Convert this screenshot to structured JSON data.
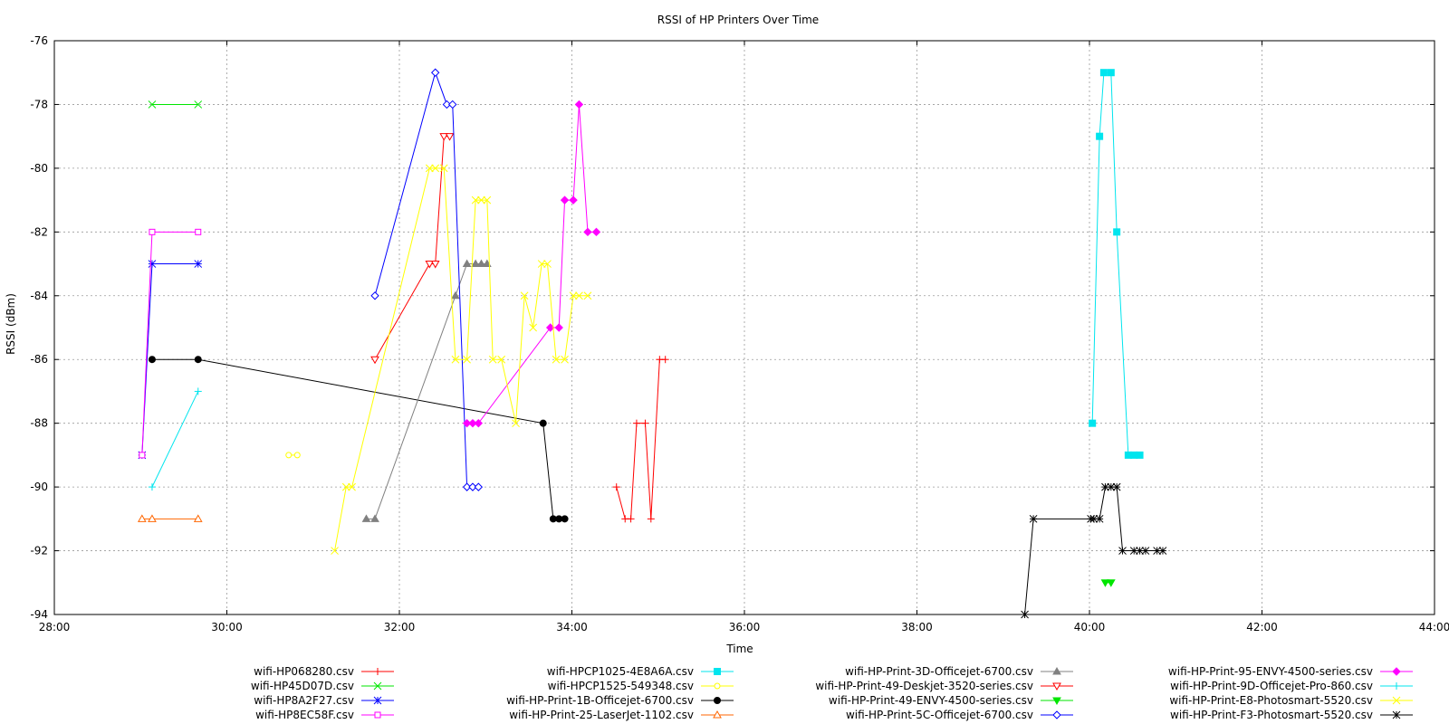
{
  "chart_data": {
    "type": "line",
    "title": "RSSI of HP Printers Over Time",
    "xlabel": "Time",
    "ylabel": "RSSI (dBm)",
    "xlim": [
      "28:00",
      "44:00"
    ],
    "ylim": [
      -94,
      -76
    ],
    "x_ticks": [
      "28:00",
      "30:00",
      "32:00",
      "34:00",
      "36:00",
      "38:00",
      "40:00",
      "42:00",
      "44:00"
    ],
    "y_ticks": [
      -76,
      -78,
      -80,
      -82,
      -84,
      -86,
      -88,
      -90,
      -92,
      -94
    ],
    "grid": true,
    "legend_position": "bottom",
    "series": [
      {
        "name": "wifi-HP068280.csv",
        "color": "#ff0000",
        "marker": "plus",
        "points": [
          [
            "34:31",
            -90
          ],
          [
            "34:37",
            -91
          ],
          [
            "34:41",
            -91
          ],
          [
            "34:45",
            -88
          ],
          [
            "34:51",
            -88
          ],
          [
            "34:55",
            -91
          ],
          [
            "35:01",
            -86
          ],
          [
            "35:05",
            -86
          ]
        ]
      },
      {
        "name": "wifi-HP45D07D.csv",
        "color": "#00e600",
        "marker": "cross",
        "points": [
          [
            "29:08",
            -78
          ],
          [
            "29:40",
            -78
          ]
        ]
      },
      {
        "name": "wifi-HP8A2F27.csv",
        "color": "#0000ff",
        "marker": "star",
        "points": [
          [
            "29:01",
            -89
          ],
          [
            "29:08",
            -83
          ],
          [
            "29:40",
            -83
          ]
        ]
      },
      {
        "name": "wifi-HP8EC58F.csv",
        "color": "#ff00ff",
        "marker": "open-square",
        "points": [
          [
            "29:01",
            -89
          ],
          [
            "29:08",
            -82
          ],
          [
            "29:40",
            -82
          ]
        ]
      },
      {
        "name": "wifi-HPCP1025-4E8A6A.csv",
        "color": "#00e5ee",
        "marker": "filled-square",
        "points": [
          [
            "40:02",
            -88
          ],
          [
            "40:07",
            -79
          ],
          [
            "40:10",
            -77
          ],
          [
            "40:15",
            -77
          ],
          [
            "40:19",
            -82
          ],
          [
            "40:27",
            -89
          ],
          [
            "40:31",
            -89
          ],
          [
            "40:35",
            -89
          ]
        ]
      },
      {
        "name": "wifi-HPCP1525-549348.csv",
        "color": "#ffff00",
        "marker": "open-circle",
        "points": [
          [
            "30:43",
            -89
          ],
          [
            "30:49",
            -89
          ]
        ]
      },
      {
        "name": "wifi-HP-Print-1B-Officejet-6700.csv",
        "color": "#000000",
        "marker": "filled-circle",
        "points": [
          [
            "29:08",
            -86
          ],
          [
            "29:40",
            -86
          ],
          [
            "33:40",
            -88
          ],
          [
            "33:47",
            -91
          ],
          [
            "33:51",
            -91
          ],
          [
            "33:55",
            -91
          ]
        ]
      },
      {
        "name": "wifi-HP-Print-25-LaserJet-1102.csv",
        "color": "#ff6600",
        "marker": "open-triangle",
        "points": [
          [
            "29:01",
            -91
          ],
          [
            "29:08",
            -91
          ],
          [
            "29:40",
            -91
          ]
        ]
      },
      {
        "name": "wifi-HP-Print-3D-Officejet-6700.csv",
        "color": "#808080",
        "marker": "filled-triangle",
        "points": [
          [
            "31:37",
            -91
          ],
          [
            "31:43",
            -91
          ],
          [
            "32:39",
            -84
          ],
          [
            "32:47",
            -83
          ],
          [
            "32:53",
            -83
          ],
          [
            "32:57",
            -83
          ],
          [
            "33:01",
            -83
          ]
        ]
      },
      {
        "name": "wifi-HP-Print-49-Deskjet-3520-series.csv",
        "color": "#ff0000",
        "marker": "open-down-triangle",
        "points": [
          [
            "31:43",
            -86
          ],
          [
            "32:21",
            -83
          ],
          [
            "32:25",
            -83
          ],
          [
            "32:31",
            -79
          ],
          [
            "32:35",
            -79
          ]
        ]
      },
      {
        "name": "wifi-HP-Print-49-ENVY-4500-series.csv",
        "color": "#00e600",
        "marker": "filled-down-triangle",
        "points": [
          [
            "40:11",
            -93
          ],
          [
            "40:15",
            -93
          ]
        ]
      },
      {
        "name": "wifi-HP-Print-5C-Officejet-6700.csv",
        "color": "#0000ff",
        "marker": "open-diamond",
        "points": [
          [
            "31:43",
            -84
          ],
          [
            "32:25",
            -77
          ],
          [
            "32:33",
            -78
          ],
          [
            "32:37",
            -78
          ],
          [
            "32:47",
            -90
          ],
          [
            "32:51",
            -90
          ],
          [
            "32:55",
            -90
          ]
        ]
      },
      {
        "name": "wifi-HP-Print-95-ENVY-4500-series.csv",
        "color": "#ff00ff",
        "marker": "filled-diamond",
        "points": [
          [
            "32:47",
            -88
          ],
          [
            "32:51",
            -88
          ],
          [
            "32:55",
            -88
          ],
          [
            "33:45",
            -85
          ],
          [
            "33:51",
            -85
          ],
          [
            "33:55",
            -81
          ],
          [
            "34:01",
            -81
          ],
          [
            "34:05",
            -78
          ],
          [
            "34:11",
            -82
          ],
          [
            "34:17",
            -82
          ]
        ]
      },
      {
        "name": "wifi-HP-Print-9D-Officejet-Pro-860.csv",
        "color": "#00e5ee",
        "marker": "plus",
        "points": [
          [
            "29:08",
            -90
          ],
          [
            "29:40",
            -87
          ]
        ]
      },
      {
        "name": "wifi-HP-Print-E8-Photosmart-5520.csv",
        "color": "#ffff00",
        "marker": "cross",
        "points": [
          [
            "31:15",
            -92
          ],
          [
            "31:23",
            -90
          ],
          [
            "31:27",
            -90
          ],
          [
            "32:21",
            -80
          ],
          [
            "32:25",
            -80
          ],
          [
            "32:31",
            -80
          ],
          [
            "32:39",
            -86
          ],
          [
            "32:47",
            -86
          ],
          [
            "32:53",
            -81
          ],
          [
            "32:57",
            -81
          ],
          [
            "33:01",
            -81
          ],
          [
            "33:05",
            -86
          ],
          [
            "33:11",
            -86
          ],
          [
            "33:21",
            -88
          ],
          [
            "33:27",
            -84
          ],
          [
            "33:33",
            -85
          ],
          [
            "33:39",
            -83
          ],
          [
            "33:43",
            -83
          ],
          [
            "33:49",
            -86
          ],
          [
            "33:55",
            -86
          ],
          [
            "34:01",
            -84
          ],
          [
            "34:05",
            -84
          ],
          [
            "34:11",
            -84
          ]
        ]
      },
      {
        "name": "wifi-HP-Print-F3-Photosmart-5520.csv",
        "color": "#000000",
        "marker": "star",
        "points": [
          [
            "39:15",
            -94
          ],
          [
            "39:21",
            -91
          ],
          [
            "40:01",
            -91
          ],
          [
            "40:03",
            -91
          ],
          [
            "40:07",
            -91
          ],
          [
            "40:11",
            -90
          ],
          [
            "40:15",
            -90
          ],
          [
            "40:19",
            -90
          ],
          [
            "40:23",
            -92
          ],
          [
            "40:31",
            -92
          ],
          [
            "40:35",
            -92
          ],
          [
            "40:39",
            -92
          ],
          [
            "40:47",
            -92
          ],
          [
            "40:51",
            -92
          ]
        ]
      }
    ]
  }
}
